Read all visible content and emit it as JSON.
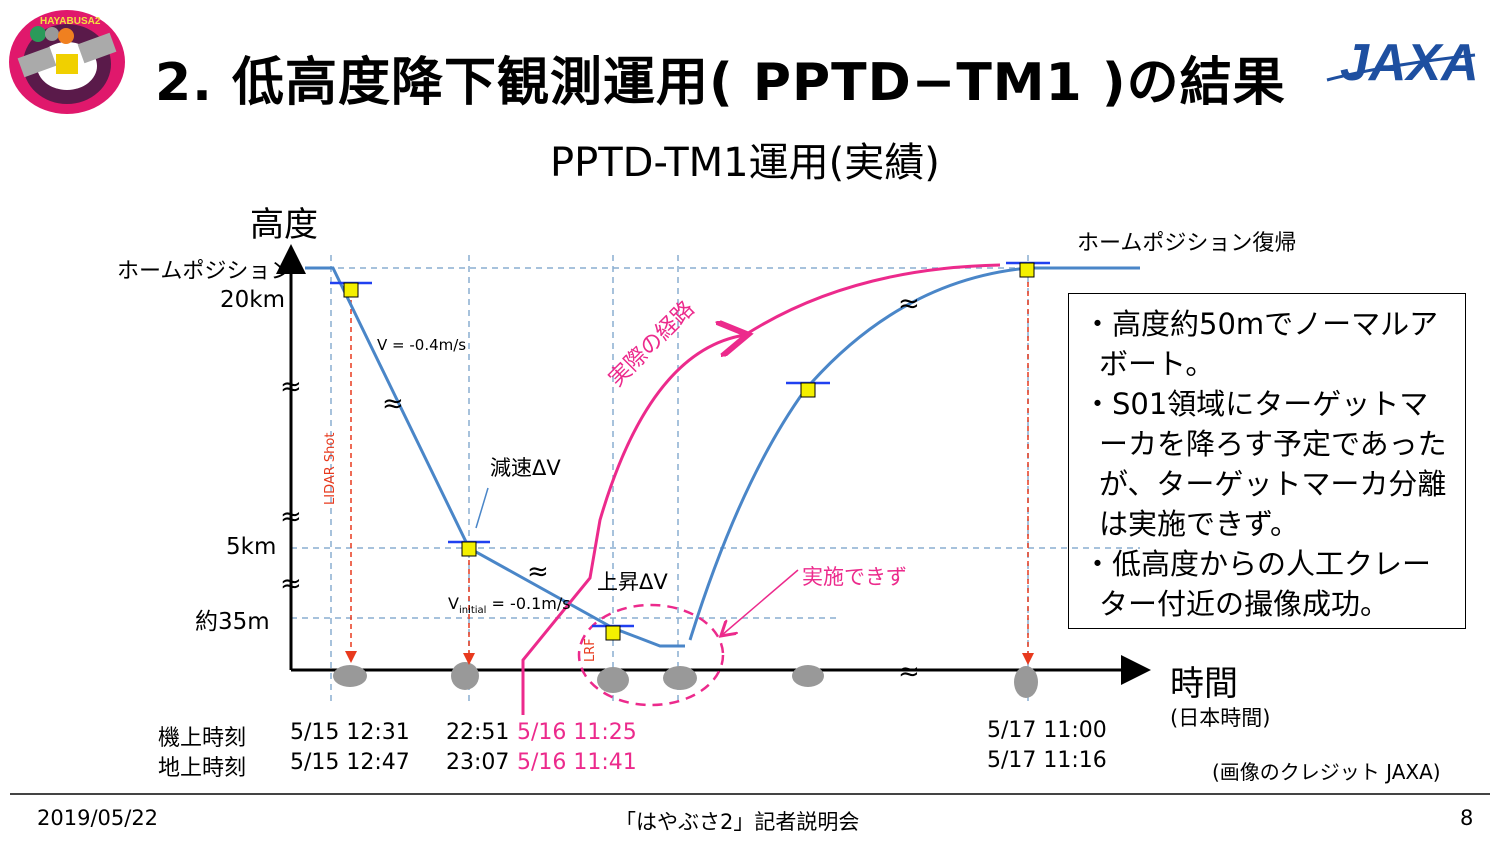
{
  "header": {
    "title": "2. 低高度降下観測運用( PPTD−TM1 )の結果",
    "logo_left_text": "HAYABUSA2",
    "logo_right_text": "JAXA"
  },
  "subtitle": "PPTD-TM1運用(実績)",
  "diagram": {
    "y_axis_label": "高度",
    "x_axis_label": "時間",
    "x_axis_sub": "(日本時間)",
    "home_position": "ホームポジション",
    "y_ticks": [
      "20km",
      "5km",
      "約35m"
    ],
    "return_label": "ホームポジション復帰",
    "velocity_1": "V = -0.4m/s",
    "decel": "減速ΔV",
    "ascent": "上昇ΔV",
    "v_initial_main": "V",
    "v_initial_sub": "initial",
    "v_initial_value": "= -0.1m/s",
    "actual_path": "実際の経路",
    "not_done": "実施できず",
    "lidar": "LIDAR Shot",
    "lrf": "LRF",
    "colors": {
      "path": "#4a86c8",
      "actual": "#ec2a8c",
      "marker": "#e83a1e",
      "grid": "#8aaed0"
    }
  },
  "times": {
    "onboard_label": "機上時刻",
    "ground_label": "地上時刻",
    "onboard": [
      "5/15 12:31",
      "22:51",
      "5/16 11:25",
      "5/17 11:00"
    ],
    "ground": [
      "5/15 12:47",
      "23:07",
      "5/16 11:41",
      "5/17 11:16"
    ]
  },
  "notes": [
    "・高度約50mでノーマルアボート。",
    "・S01領域にターゲットマーカを降ろす予定であったが、ターゲットマーカ分離は実施できず。",
    "・低高度からの人工クレーター付近の撮像成功。"
  ],
  "credit": "(画像のクレジット JAXA)",
  "footer": {
    "date": "2019/05/22",
    "event": "「はやぶさ2」記者説明会",
    "page": "8"
  }
}
